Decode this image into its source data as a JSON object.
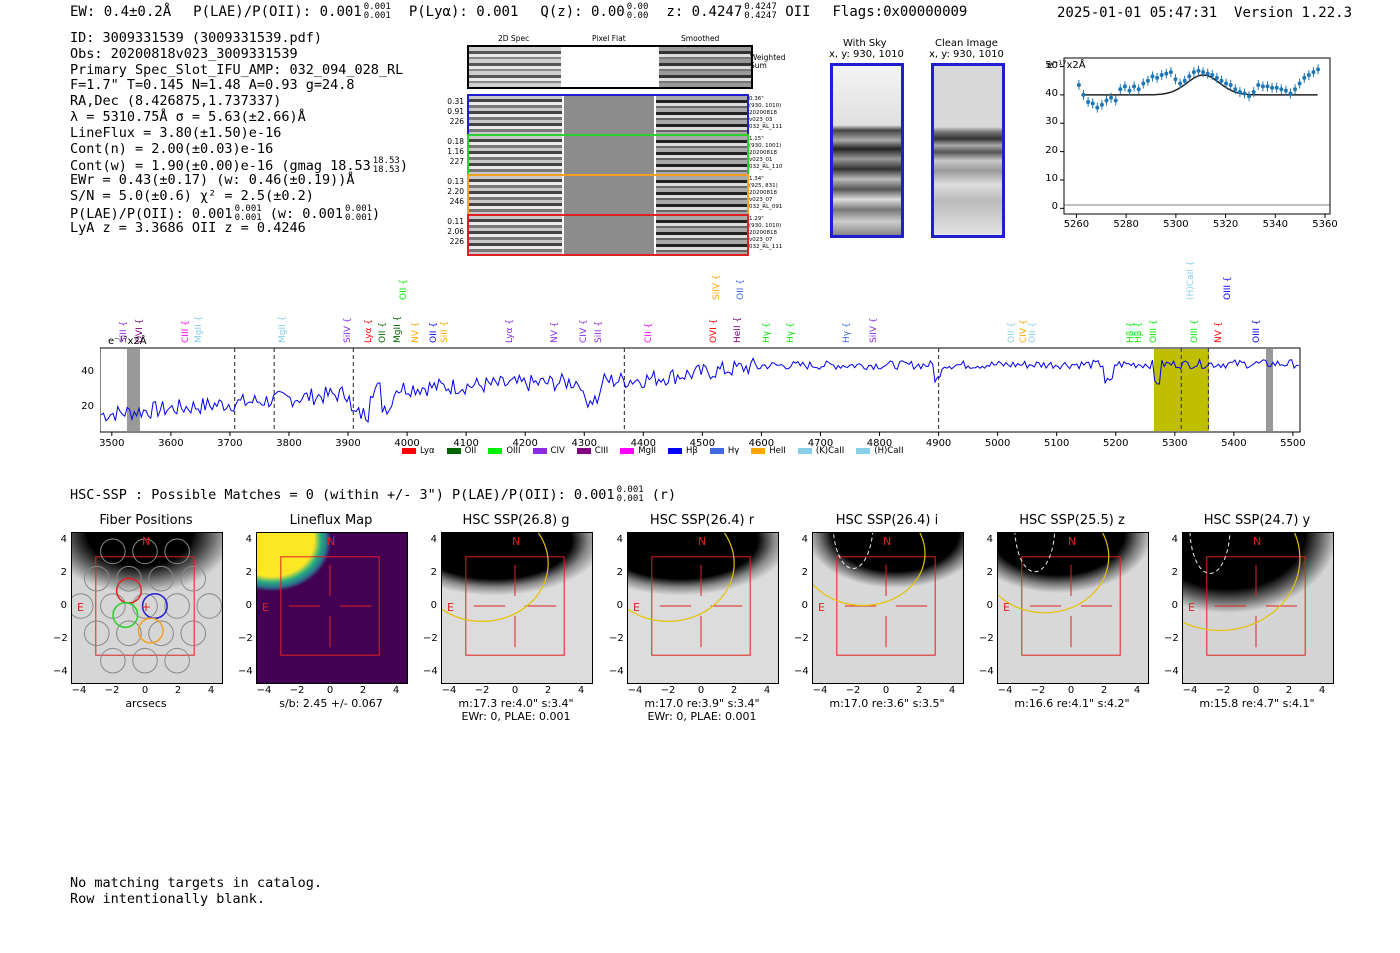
{
  "header": {
    "ew": "EW: 0.4±0.2Å",
    "plae_label": "P(LAE)/P(OII): 0.001",
    "plae_hi": "0.001",
    "plae_lo": "0.001",
    "plya": "P(Lyα): 0.001",
    "qz_label": "Q(z): 0.00",
    "qz_hi": "0.00",
    "qz_lo": "0.00",
    "z_label": "z: 0.4247",
    "z_hi": "0.4247",
    "z_lo": "0.4247",
    "z_line": "OII",
    "flags": "Flags:0x00000009",
    "datetime": "2025-01-01 05:47:31",
    "version": "Version 1.22.3"
  },
  "info": {
    "id": "ID: 3009331539 (3009331539.pdf)",
    "obs": "Obs: 20200818v023_3009331539",
    "primary": "Primary Spec_Slot_IFU_AMP: 032_094_028_RL",
    "fta": "F=1.7\"  T=0.145  N=1.48  A=0.93  g=24.8",
    "radec": "RA,Dec (8.426875,1.737337)",
    "lambda": "λ = 5310.75Å   σ = 5.63(±2.66)Å",
    "lineflux": "LineFlux = 3.80(±1.50)e-16",
    "contn": "Cont(n) = 2.00(±0.03)e-16",
    "contw": "Cont(w) = 1.90(±0.00)e-16 (gmag 18.53",
    "contw_hi": "18.53",
    "contw_lo": "18.53",
    "ewr": "EWr = 0.43(±0.17) (w: 0.46(±0.19))Å",
    "sn": "S/N = 5.0(±0.6)  χ² = 2.5(±0.2)",
    "plae": "P(LAE)/P(OII): 0.001",
    "plae_hi": "0.001",
    "plae_lo": "0.001",
    "plae_w": "(w: 0.001",
    "plae_w_hi": "0.001",
    "plae_w_lo": "0.001",
    "lya": "LyA z = 3.3686  OII z = 0.4246"
  },
  "cutouts": {
    "col_headers": [
      "2D Spec",
      "Pixel Flat",
      "Smoothed"
    ],
    "weighted_sum": "Weighted Sum",
    "rows": [
      {
        "color": "#1f1fd0",
        "left": [
          "0.31",
          "0.91",
          "226"
        ],
        "right": [
          "0.36\"",
          "(930, 1010)",
          "20200818",
          "v023_03",
          "032_RL_111"
        ]
      },
      {
        "color": "#2bd12b",
        "left": [
          "0.18",
          "1.16",
          "227"
        ],
        "right": [
          "1.15\"",
          "(930, 1001)",
          "20200818",
          "v023_01",
          "032_RL_110"
        ]
      },
      {
        "color": "#f4a020",
        "left": [
          "0.13",
          "2.20",
          "246"
        ],
        "right": [
          "1.34\"",
          "(925, 831)",
          "20200818",
          "v023_07",
          "032_RL_091"
        ]
      },
      {
        "color": "#e02020",
        "left": [
          "0.11",
          "2.06",
          "226"
        ],
        "right": [
          "1.29\"",
          "(930, 1010)",
          "20200818",
          "v023_07",
          "032_RL_111"
        ]
      }
    ]
  },
  "sky": {
    "with_sky": "With Sky",
    "with_sky_xy": "x, y: 930, 1010",
    "clean": "Clean Image",
    "clean_xy": "x, y: 930, 1010"
  },
  "zoom": {
    "unit_label": "e⁻¹⁷x2Å",
    "yticks": [
      "50",
      "40",
      "30",
      "20",
      "10",
      "0"
    ],
    "xticks": [
      "5260",
      "5280",
      "5300",
      "5320",
      "5340",
      "5360"
    ]
  },
  "spectrum": {
    "unit_label": "e⁻¹⁷x2Å",
    "yticks": [
      "40",
      "20"
    ],
    "xticks": [
      "3500",
      "3600",
      "3700",
      "3800",
      "3900",
      "4000",
      "4100",
      "4200",
      "4300",
      "4400",
      "4500",
      "4600",
      "4700",
      "4800",
      "4900",
      "5000",
      "5100",
      "5200",
      "5300",
      "5400",
      "5500"
    ],
    "legend": [
      {
        "name": "Lyα",
        "color": "#ff0000"
      },
      {
        "name": "OII",
        "color": "#006400"
      },
      {
        "name": "OIII",
        "color": "#00ee00"
      },
      {
        "name": "CIV",
        "color": "#8a2be2"
      },
      {
        "name": "CIII",
        "color": "#800080"
      },
      {
        "name": "MgII",
        "color": "#ff00ff"
      },
      {
        "name": "Hβ",
        "color": "#0000ff"
      },
      {
        "name": "Hγ",
        "color": "#4169e1"
      },
      {
        "name": "HeII",
        "color": "#ffa500"
      },
      {
        "name": "(K)CaII",
        "color": "#87ceeb"
      },
      {
        "name": "(H)CaII",
        "color": "#87ceeb"
      }
    ],
    "lines": [
      {
        "t": "SiII",
        "x": 3520,
        "c": "#8a2be2",
        "h": 0
      },
      {
        "t": "OVI",
        "x": 3547,
        "c": "#800080",
        "h": 0
      },
      {
        "t": "CIII",
        "x": 3625,
        "c": "#ff00ff",
        "h": 0
      },
      {
        "t": "MgII",
        "x": 3648,
        "c": "#87ceeb",
        "h": 0
      },
      {
        "t": "MgII",
        "x": 3790,
        "c": "#87ceeb",
        "h": 0
      },
      {
        "t": "SiIV",
        "x": 3900,
        "c": "#8a2be2",
        "h": 0
      },
      {
        "t": "Lyα",
        "x": 3935,
        "c": "#ff0000",
        "h": 0
      },
      {
        "t": "OII",
        "x": 3960,
        "c": "#006400",
        "h": 0
      },
      {
        "t": "MgII",
        "x": 3985,
        "c": "#006400",
        "h": 0
      },
      {
        "t": "OII",
        "x": 3995,
        "c": "#00ee00",
        "h": 1
      },
      {
        "t": "NV",
        "x": 4015,
        "c": "#ffa500",
        "h": 0
      },
      {
        "t": "OII",
        "x": 4045,
        "c": "#0000ff",
        "h": 0
      },
      {
        "t": "SiII",
        "x": 4065,
        "c": "#ffa500",
        "h": 0
      },
      {
        "t": "Lyα",
        "x": 4175,
        "c": "#8a2be2",
        "h": 0
      },
      {
        "t": "NV",
        "x": 4250,
        "c": "#8a2be2",
        "h": 0
      },
      {
        "t": "CIV",
        "x": 4300,
        "c": "#8a2be2",
        "h": 0
      },
      {
        "t": "SiII",
        "x": 4325,
        "c": "#8a2be2",
        "h": 0
      },
      {
        "t": "CII",
        "x": 4410,
        "c": "#ff00ff",
        "h": 0
      },
      {
        "t": "OVI",
        "x": 4520,
        "c": "#ff0000",
        "h": 0
      },
      {
        "t": "SiIV",
        "x": 4525,
        "c": "#ffa500",
        "h": 1
      },
      {
        "t": "HeII",
        "x": 4560,
        "c": "#800080",
        "h": 0
      },
      {
        "t": "OII",
        "x": 4565,
        "c": "#4169e1",
        "h": 1
      },
      {
        "t": "Hγ",
        "x": 4610,
        "c": "#00ee00",
        "h": 0
      },
      {
        "t": "Hγ",
        "x": 4650,
        "c": "#00ee00",
        "h": 0
      },
      {
        "t": "Hγ",
        "x": 4745,
        "c": "#4169e1",
        "h": 0
      },
      {
        "t": "SiIV",
        "x": 4790,
        "c": "#8a2be2",
        "h": 0
      },
      {
        "t": "OII",
        "x": 5025,
        "c": "#87ceeb",
        "h": 0
      },
      {
        "t": "CIV",
        "x": 5045,
        "c": "#ffa500",
        "h": 0
      },
      {
        "t": "OII",
        "x": 5060,
        "c": "#87ceeb",
        "h": 0
      },
      {
        "t": "Hβ",
        "x": 5225,
        "c": "#00ee00",
        "h": 0
      },
      {
        "t": "Hβ",
        "x": 5240,
        "c": "#00ee00",
        "h": 0
      },
      {
        "t": "OIII",
        "x": 5265,
        "c": "#00ee00",
        "h": 0
      },
      {
        "t": "(H)CaII",
        "x": 5328,
        "c": "#87ceeb",
        "h": 1
      },
      {
        "t": "OIII",
        "x": 5335,
        "c": "#00ee00",
        "h": 0
      },
      {
        "t": "NV",
        "x": 5375,
        "c": "#ff0000",
        "h": 0
      },
      {
        "t": "OIII",
        "x": 5390,
        "c": "#0000ff",
        "h": 1
      },
      {
        "t": "OIII",
        "x": 5440,
        "c": "#0000ff",
        "h": 0
      }
    ]
  },
  "hsc": {
    "label": "HSC-SSP : Possible Matches = 0 (within +/- 3\")  P(LAE)/P(OII): 0.001",
    "hi": "0.001",
    "lo": "0.001",
    "band": "(r)"
  },
  "panels": [
    {
      "title": "Fiber Positions",
      "foot1": "arcsecs",
      "foot2": "",
      "kind": "fiber"
    },
    {
      "title": "Lineflux Map",
      "foot1": "s/b: 2.45 +/- 0.067",
      "foot2": "",
      "kind": "lineflux"
    },
    {
      "title": "HSC SSP(26.8) g",
      "foot1": "m:17.3  re:4.0\"  s:3.4\"",
      "foot2": "EWr: 0, PLAE: 0.001",
      "kind": "g"
    },
    {
      "title": "HSC SSP(26.4) r",
      "foot1": "m:17.0  re:3.9\"  s:3.4\"",
      "foot2": "EWr: 0, PLAE: 0.001",
      "kind": "r"
    },
    {
      "title": "HSC SSP(26.4) i",
      "foot1": "m:17.0  re:3.6\"  s:3.5\"",
      "foot2": "",
      "kind": "i"
    },
    {
      "title": "HSC SSP(25.5) z",
      "foot1": "m:16.6  re:4.1\"  s:4.2\"",
      "foot2": "",
      "kind": "z"
    },
    {
      "title": "HSC SSP(24.7) y",
      "foot1": "m:15.8  re:4.7\"  s:4.1\"",
      "foot2": "",
      "kind": "y"
    }
  ],
  "panel_axes": {
    "yticks": [
      "4",
      "2",
      "0",
      "−2",
      "−4"
    ],
    "xticks": [
      "−4",
      "−2",
      "0",
      "2",
      "4"
    ],
    "north": "N",
    "east": "E"
  },
  "footer": {
    "line1": "No matching targets in catalog.",
    "line2": "Row intentionally blank."
  }
}
